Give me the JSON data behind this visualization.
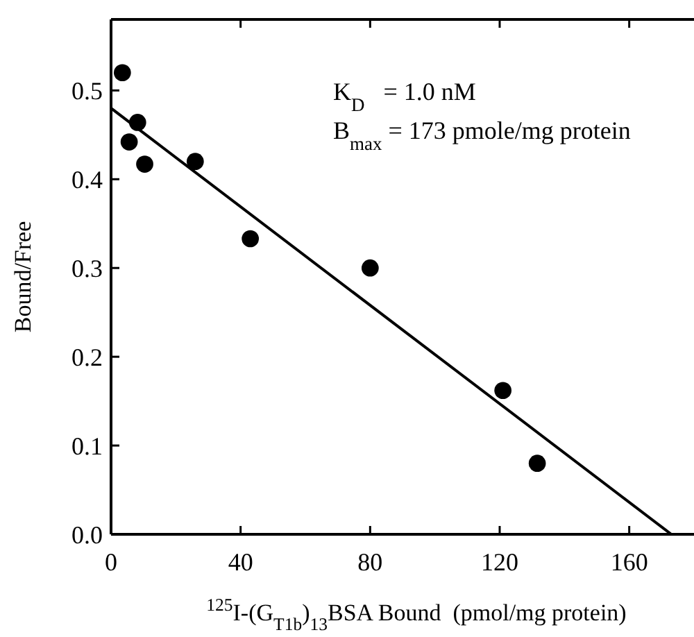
{
  "chart_data": {
    "type": "scatter",
    "xlabel": "$^{125}$I-(G$_{T1b}$)$_{13}$BSA Bound  (pmol/mg protein)",
    "ylabel": "Bound/Free",
    "annotations": [
      "K$_{D}$   = 1.0 nM",
      "B$_{max}$ = 173 pmole/mg protein"
    ],
    "xlim": [
      0,
      180
    ],
    "ylim": [
      0,
      0.58
    ],
    "xticks": [
      0,
      40,
      80,
      120,
      160
    ],
    "yticks": [
      {
        "value": 0,
        "label": "0.0"
      },
      0.1,
      0.2,
      0.3,
      0.4,
      0.5
    ],
    "grid": false,
    "series": [
      {
        "marker": "circle",
        "color": "#000000",
        "x": [
          3.5,
          5.6,
          8.2,
          10.4,
          26,
          43,
          80,
          121,
          131.6
        ],
        "values": [
          0.52,
          0.442,
          0.464,
          0.417,
          0.42,
          0.333,
          0.3,
          0.162,
          0.08
        ]
      },
      {
        "type": "line",
        "color": "#000000",
        "line_style": "solid",
        "x": [
          0,
          173
        ],
        "values": [
          0.48,
          0
        ]
      }
    ]
  }
}
